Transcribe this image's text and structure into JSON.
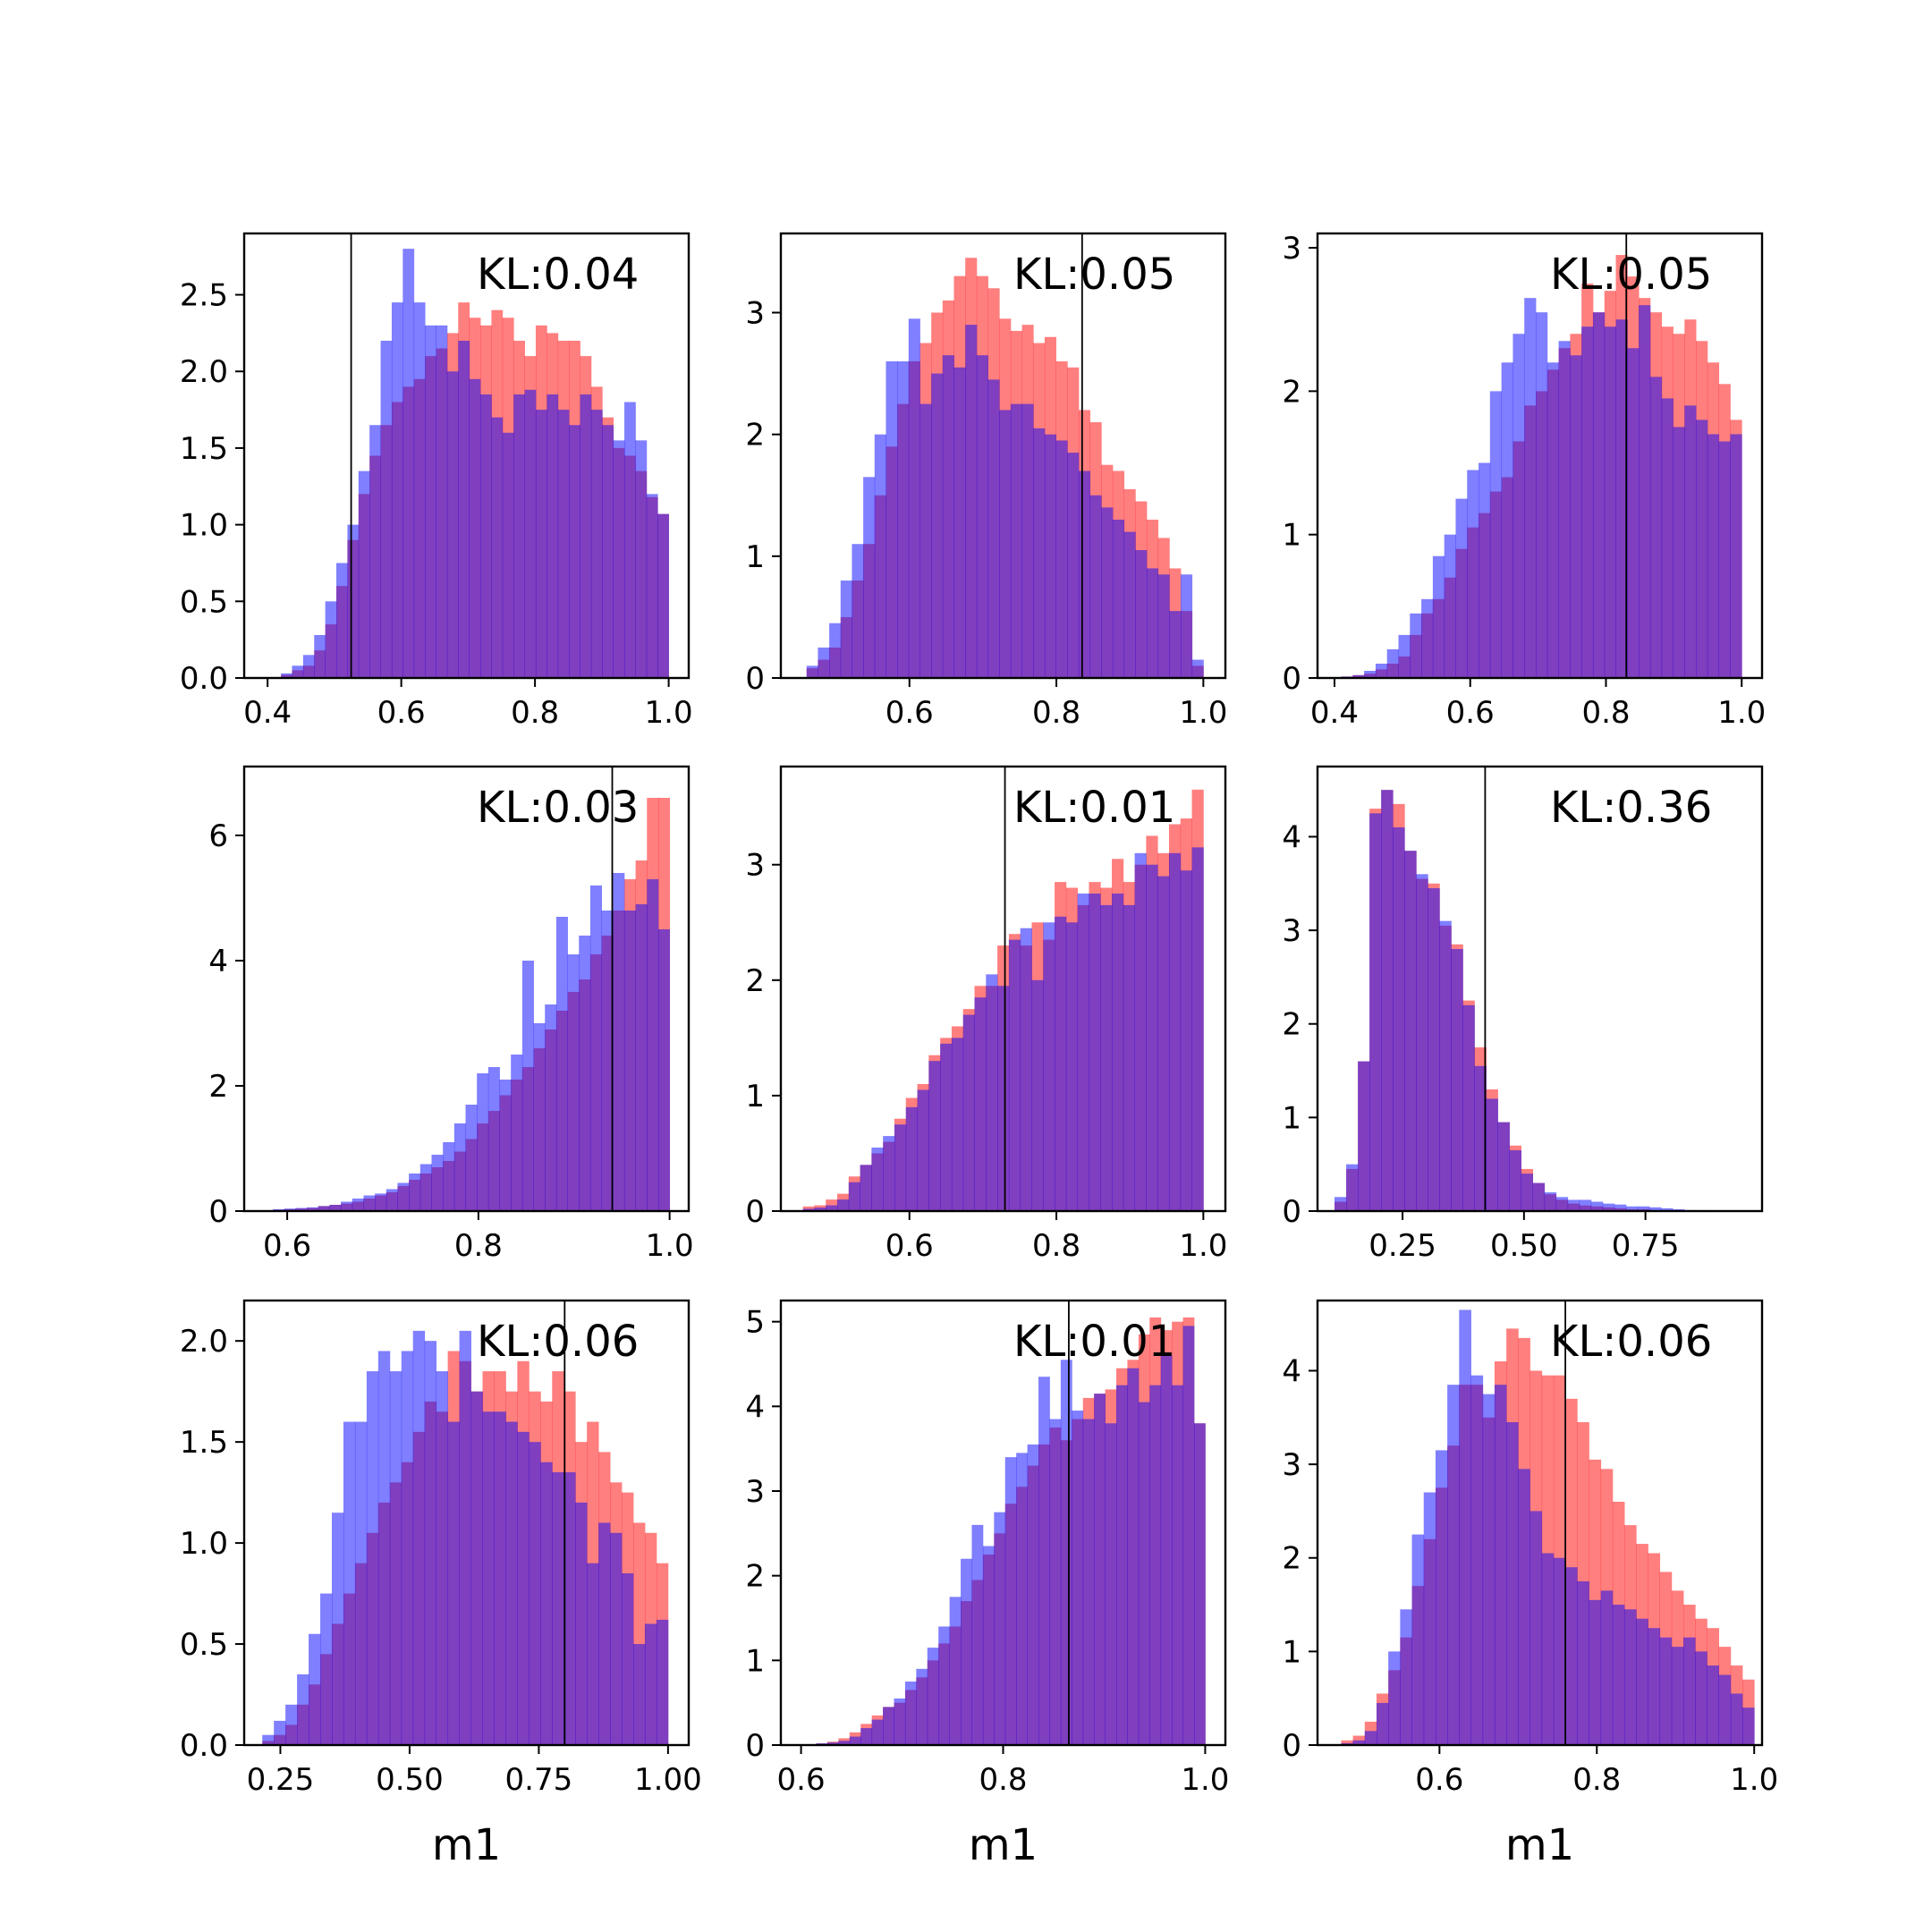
{
  "figure": {
    "colors": {
      "red": "#ff0000",
      "blue": "#0000ff",
      "overlap": "#7f3fbf",
      "axis": "#000000"
    },
    "bar_opacity": 0.5
  },
  "chart_data": [
    {
      "type": "bar",
      "annotation": "KL:0.04",
      "vline": 0.525,
      "xlabel": "",
      "xlim": [
        0.365,
        1.03
      ],
      "ylim": [
        0,
        2.9
      ],
      "xticks": [
        0.4,
        0.6,
        0.8,
        1.0
      ],
      "xtick_labels": [
        "0.4",
        "0.6",
        "0.8",
        "1.0"
      ],
      "yticks": [
        0,
        0.5,
        1.0,
        1.5,
        2.0,
        2.5
      ],
      "ytick_labels": [
        "0.0",
        "0.5",
        "1.0",
        "1.5",
        "2.0",
        "2.5"
      ],
      "bins": {
        "start": 0.42,
        "end": 1.0,
        "count": 35
      },
      "series": [
        {
          "color": "red",
          "values": [
            0.02,
            0.05,
            0.08,
            0.18,
            0.35,
            0.6,
            0.9,
            1.2,
            1.45,
            1.65,
            1.8,
            1.9,
            1.95,
            2.1,
            2.15,
            2.25,
            2.45,
            2.35,
            2.3,
            2.4,
            2.35,
            2.2,
            2.1,
            2.3,
            2.25,
            2.2,
            2.2,
            2.1,
            1.9,
            1.7,
            1.5,
            1.45,
            1.35,
            1.18,
            1.07
          ]
        },
        {
          "color": "blue",
          "values": [
            0.03,
            0.08,
            0.15,
            0.28,
            0.5,
            0.75,
            1.0,
            1.35,
            1.65,
            2.2,
            2.45,
            2.8,
            2.45,
            2.3,
            2.3,
            2.0,
            2.2,
            1.95,
            1.85,
            1.7,
            1.6,
            1.85,
            1.88,
            1.75,
            1.85,
            1.75,
            1.65,
            1.85,
            1.75,
            1.65,
            1.55,
            1.8,
            1.55,
            1.2,
            1.07
          ]
        }
      ]
    },
    {
      "type": "bar",
      "annotation": "KL:0.05",
      "vline": 0.835,
      "xlabel": "",
      "xlim": [
        0.425,
        1.03
      ],
      "ylim": [
        0,
        3.65
      ],
      "xticks": [
        0.6,
        0.8,
        1.0
      ],
      "xtick_labels": [
        "0.6",
        "0.8",
        "1.0"
      ],
      "yticks": [
        0,
        1,
        2,
        3
      ],
      "ytick_labels": [
        "0",
        "1",
        "2",
        "3"
      ],
      "bins": {
        "start": 0.46,
        "end": 1.0,
        "count": 35
      },
      "series": [
        {
          "color": "red",
          "values": [
            0.08,
            0.15,
            0.25,
            0.5,
            0.8,
            1.1,
            1.5,
            1.9,
            2.25,
            2.6,
            2.75,
            3.0,
            3.1,
            3.3,
            3.45,
            3.3,
            3.2,
            2.95,
            2.85,
            2.9,
            2.75,
            2.8,
            2.6,
            2.55,
            2.2,
            2.1,
            1.75,
            1.7,
            1.55,
            1.45,
            1.3,
            1.15,
            0.9,
            0.55,
            0.1
          ]
        },
        {
          "color": "blue",
          "values": [
            0.1,
            0.25,
            0.45,
            0.8,
            1.1,
            1.65,
            2.0,
            2.6,
            2.6,
            2.95,
            2.25,
            2.5,
            2.65,
            2.55,
            2.9,
            2.65,
            2.45,
            2.2,
            2.25,
            2.25,
            2.05,
            2.0,
            1.95,
            1.85,
            1.7,
            1.5,
            1.4,
            1.3,
            1.2,
            1.05,
            0.9,
            0.85,
            0.55,
            0.85,
            0.15
          ]
        }
      ]
    },
    {
      "type": "bar",
      "annotation": "KL:0.05",
      "vline": 0.83,
      "xlabel": "",
      "xlim": [
        0.375,
        1.03
      ],
      "ylim": [
        0,
        3.1
      ],
      "xticks": [
        0.4,
        0.6,
        0.8,
        1.0
      ],
      "xtick_labels": [
        "0.4",
        "0.6",
        "0.8",
        "1.0"
      ],
      "yticks": [
        0,
        1,
        2,
        3
      ],
      "ytick_labels": [
        "0",
        "1",
        "2",
        "3"
      ],
      "bins": {
        "start": 0.41,
        "end": 1.0,
        "count": 35
      },
      "series": [
        {
          "color": "red",
          "values": [
            0.01,
            0.02,
            0.03,
            0.06,
            0.1,
            0.15,
            0.3,
            0.45,
            0.55,
            0.7,
            0.9,
            1.05,
            1.15,
            1.3,
            1.4,
            1.65,
            1.9,
            2.0,
            2.15,
            2.3,
            2.4,
            2.75,
            2.55,
            2.7,
            2.95,
            2.8,
            2.65,
            2.55,
            2.45,
            2.4,
            2.5,
            2.35,
            2.2,
            2.05,
            1.8
          ]
        },
        {
          "color": "blue",
          "values": [
            0.01,
            0.02,
            0.05,
            0.1,
            0.2,
            0.3,
            0.45,
            0.55,
            0.85,
            1.0,
            1.25,
            1.45,
            1.5,
            2.0,
            2.2,
            2.4,
            2.65,
            2.55,
            2.2,
            2.35,
            2.25,
            2.45,
            2.55,
            2.45,
            2.5,
            2.3,
            2.6,
            2.1,
            1.95,
            1.75,
            1.9,
            1.8,
            1.7,
            1.65,
            1.7
          ]
        }
      ]
    },
    {
      "type": "bar",
      "annotation": "KL:0.03",
      "vline": 0.94,
      "xlabel": "",
      "xlim": [
        0.555,
        1.02
      ],
      "ylim": [
        0,
        7.1
      ],
      "xticks": [
        0.6,
        0.8,
        1.0
      ],
      "xtick_labels": [
        "0.6",
        "0.8",
        "1.0"
      ],
      "yticks": [
        0,
        2,
        4,
        6
      ],
      "ytick_labels": [
        "0",
        "2",
        "4",
        "6"
      ],
      "bins": {
        "start": 0.585,
        "end": 1.0,
        "count": 35
      },
      "series": [
        {
          "color": "red",
          "values": [
            0.02,
            0.03,
            0.04,
            0.05,
            0.08,
            0.1,
            0.12,
            0.15,
            0.2,
            0.25,
            0.3,
            0.4,
            0.5,
            0.6,
            0.7,
            0.8,
            0.95,
            1.15,
            1.4,
            1.6,
            1.85,
            2.1,
            2.3,
            2.6,
            2.9,
            3.2,
            3.5,
            3.7,
            4.1,
            4.4,
            4.8,
            5.3,
            5.6,
            6.6,
            6.6
          ]
        },
        {
          "color": "blue",
          "values": [
            0.03,
            0.04,
            0.05,
            0.06,
            0.08,
            0.1,
            0.15,
            0.2,
            0.25,
            0.28,
            0.35,
            0.45,
            0.6,
            0.75,
            0.9,
            1.1,
            1.4,
            1.7,
            2.2,
            2.3,
            2.1,
            2.5,
            4.0,
            3.0,
            3.3,
            4.7,
            4.1,
            4.4,
            5.2,
            4.8,
            5.4,
            4.8,
            4.9,
            5.3,
            4.5
          ]
        }
      ]
    },
    {
      "type": "bar",
      "annotation": "KL:0.01",
      "vline": 0.73,
      "xlabel": "",
      "xlim": [
        0.425,
        1.03
      ],
      "ylim": [
        0,
        3.85
      ],
      "xticks": [
        0.6,
        0.8,
        1.0
      ],
      "xtick_labels": [
        "0.6",
        "0.8",
        "1.0"
      ],
      "yticks": [
        0,
        1,
        2,
        3
      ],
      "ytick_labels": [
        "0",
        "1",
        "2",
        "3"
      ],
      "bins": {
        "start": 0.455,
        "end": 1.0,
        "count": 35
      },
      "series": [
        {
          "color": "red",
          "values": [
            0.04,
            0.05,
            0.1,
            0.15,
            0.3,
            0.4,
            0.5,
            0.6,
            0.8,
            0.98,
            1.1,
            1.35,
            1.5,
            1.6,
            1.75,
            1.95,
            1.95,
            2.3,
            2.4,
            2.3,
            2.5,
            2.35,
            2.85,
            2.8,
            2.65,
            2.85,
            2.8,
            3.05,
            2.85,
            3.0,
            3.25,
            3.1,
            3.35,
            3.4,
            3.65
          ]
        },
        {
          "color": "blue",
          "values": [
            0.02,
            0.03,
            0.05,
            0.1,
            0.25,
            0.4,
            0.55,
            0.65,
            0.75,
            0.9,
            1.05,
            1.3,
            1.45,
            1.5,
            1.7,
            1.85,
            2.05,
            1.95,
            2.35,
            2.45,
            2.0,
            2.5,
            2.55,
            2.5,
            2.75,
            2.75,
            2.65,
            2.75,
            2.65,
            3.1,
            3.0,
            2.9,
            3.1,
            2.95,
            3.15
          ]
        }
      ]
    },
    {
      "type": "bar",
      "annotation": "KL:0.36",
      "vline": 0.42,
      "xlabel": "",
      "xlim": [
        0.075,
        0.99
      ],
      "ylim": [
        0,
        4.75
      ],
      "xticks": [
        0.25,
        0.5,
        0.75
      ],
      "xtick_labels": [
        "0.25",
        "0.50",
        "0.75"
      ],
      "yticks": [
        0,
        1,
        2,
        3,
        4
      ],
      "ytick_labels": [
        "0",
        "1",
        "2",
        "3",
        "4"
      ],
      "bins": {
        "start": 0.11,
        "end": 0.95,
        "count": 35
      },
      "series": [
        {
          "color": "red",
          "values": [
            0.1,
            0.45,
            1.6,
            4.3,
            4.5,
            4.35,
            3.85,
            3.55,
            3.5,
            3.05,
            2.85,
            2.25,
            1.75,
            1.3,
            0.95,
            0.7,
            0.45,
            0.3,
            0.18,
            0.12,
            0.08,
            0.06,
            0.05,
            0.04,
            0.03,
            0.02,
            0.02,
            0.01,
            0.01,
            0.01,
            0.01,
            0.005,
            0.005,
            0.005,
            0.005
          ]
        },
        {
          "color": "blue",
          "values": [
            0.15,
            0.5,
            1.6,
            4.25,
            4.5,
            4.1,
            3.85,
            3.6,
            3.45,
            3.1,
            2.8,
            2.2,
            1.55,
            1.2,
            0.95,
            0.65,
            0.4,
            0.3,
            0.2,
            0.15,
            0.12,
            0.12,
            0.1,
            0.08,
            0.07,
            0.05,
            0.05,
            0.04,
            0.03,
            0.02,
            0.01,
            0.01,
            0.005,
            0.005,
            0.005
          ]
        }
      ]
    },
    {
      "type": "bar",
      "annotation": "KL:0.06",
      "vline": 0.8,
      "xlabel": "m1",
      "xlim": [
        0.18,
        1.04
      ],
      "ylim": [
        0,
        2.2
      ],
      "xticks": [
        0.25,
        0.5,
        0.75,
        1.0
      ],
      "xtick_labels": [
        "0.25",
        "0.50",
        "0.75",
        "1.00"
      ],
      "yticks": [
        0,
        0.5,
        1.0,
        1.5,
        2.0
      ],
      "ytick_labels": [
        "0.0",
        "0.5",
        "1.0",
        "1.5",
        "2.0"
      ],
      "bins": {
        "start": 0.215,
        "end": 1.0,
        "count": 35
      },
      "series": [
        {
          "color": "red",
          "values": [
            0.02,
            0.05,
            0.1,
            0.2,
            0.3,
            0.45,
            0.6,
            0.75,
            0.9,
            1.05,
            1.2,
            1.3,
            1.4,
            1.55,
            1.7,
            1.65,
            1.95,
            1.9,
            1.75,
            1.85,
            1.85,
            1.75,
            1.9,
            1.75,
            1.7,
            1.85,
            1.75,
            1.5,
            1.6,
            1.45,
            1.3,
            1.25,
            1.1,
            1.05,
            0.9
          ]
        },
        {
          "color": "blue",
          "values": [
            0.05,
            0.12,
            0.2,
            0.35,
            0.55,
            0.75,
            1.15,
            1.6,
            1.6,
            1.85,
            1.95,
            1.85,
            1.95,
            2.05,
            2.0,
            1.85,
            1.6,
            2.05,
            1.75,
            1.65,
            1.65,
            1.6,
            1.55,
            1.5,
            1.4,
            1.35,
            1.35,
            1.2,
            0.9,
            1.1,
            1.05,
            0.85,
            0.5,
            0.6,
            0.62
          ]
        }
      ]
    },
    {
      "type": "bar",
      "annotation": "KL:0.01",
      "vline": 0.865,
      "xlabel": "m1",
      "xlim": [
        0.58,
        1.02
      ],
      "ylim": [
        0,
        5.25
      ],
      "xticks": [
        0.6,
        0.8,
        1.0
      ],
      "xtick_labels": [
        "0.6",
        "0.8",
        "1.0"
      ],
      "yticks": [
        0,
        1,
        2,
        3,
        4,
        5
      ],
      "ytick_labels": [
        "0",
        "1",
        "2",
        "3",
        "4",
        "5"
      ],
      "bins": {
        "start": 0.615,
        "end": 1.0,
        "count": 35
      },
      "series": [
        {
          "color": "red",
          "values": [
            0.02,
            0.04,
            0.08,
            0.15,
            0.25,
            0.35,
            0.45,
            0.5,
            0.65,
            0.8,
            1.0,
            1.2,
            1.4,
            1.7,
            1.95,
            2.25,
            2.5,
            2.85,
            3.05,
            3.3,
            3.55,
            3.75,
            3.6,
            3.85,
            4.1,
            4.15,
            4.2,
            4.45,
            4.55,
            4.85,
            5.05,
            4.9,
            5.0,
            5.05,
            3.8
          ]
        },
        {
          "color": "blue",
          "values": [
            0.02,
            0.03,
            0.05,
            0.1,
            0.2,
            0.3,
            0.45,
            0.55,
            0.75,
            0.9,
            1.15,
            1.4,
            1.75,
            2.2,
            2.6,
            2.35,
            2.75,
            3.4,
            3.45,
            3.55,
            4.35,
            3.85,
            4.55,
            3.95,
            3.85,
            4.15,
            3.8,
            4.25,
            4.45,
            4.05,
            4.25,
            4.6,
            4.25,
            4.95,
            3.8
          ]
        }
      ]
    },
    {
      "type": "bar",
      "annotation": "KL:0.06",
      "vline": 0.76,
      "xlabel": "m1",
      "xlim": [
        0.445,
        1.01
      ],
      "ylim": [
        0,
        4.75
      ],
      "xticks": [
        0.6,
        0.8,
        1.0
      ],
      "xtick_labels": [
        "0.6",
        "0.8",
        "1.0"
      ],
      "yticks": [
        0,
        1,
        2,
        3,
        4
      ],
      "ytick_labels": [
        "0",
        "1",
        "2",
        "3",
        "4"
      ],
      "bins": {
        "start": 0.475,
        "end": 1.0,
        "count": 35
      },
      "series": [
        {
          "color": "red",
          "values": [
            0.05,
            0.1,
            0.25,
            0.55,
            0.8,
            1.15,
            1.7,
            2.2,
            2.75,
            3.2,
            3.85,
            3.85,
            3.5,
            4.1,
            4.45,
            4.35,
            4.0,
            3.95,
            3.95,
            3.7,
            3.45,
            3.05,
            2.95,
            2.6,
            2.35,
            2.15,
            2.05,
            1.85,
            1.65,
            1.5,
            1.35,
            1.25,
            1.05,
            0.85,
            0.7
          ]
        },
        {
          "color": "blue",
          "values": [
            0.02,
            0.05,
            0.15,
            0.45,
            1.0,
            1.45,
            2.25,
            2.7,
            3.15,
            3.85,
            4.65,
            3.95,
            3.75,
            3.85,
            3.45,
            2.95,
            2.5,
            2.05,
            2.0,
            1.9,
            1.75,
            1.55,
            1.65,
            1.5,
            1.45,
            1.35,
            1.25,
            1.15,
            1.05,
            1.15,
            1.0,
            0.85,
            0.75,
            0.55,
            0.4
          ]
        }
      ]
    }
  ]
}
